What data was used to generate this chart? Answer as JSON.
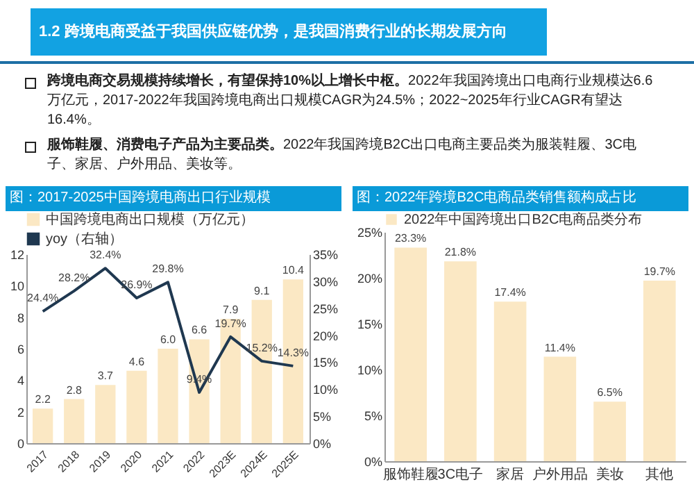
{
  "chart_data": [
    {
      "type": "other",
      "title": "1.2 跨境电商受益于我国供应链优势，是我国消费行业的长期发展方向",
      "annotations": [
        "跨境电商交易规模持续增长，有望保持10%以上增长中枢。2022年我国跨境出口电商行业规模达6.6万亿元，2017-2022年我国跨境电商出口规模CAGR为24.5%；2022~2025年行业CAGR有望达16.4%。",
        "服饰鞋履、消费电子产品为主要品类。2022年我国跨境B2C出口电商主要品类为服装鞋履、3C电子、家居、户外用品、美妆等。"
      ]
    },
    {
      "type": "bar",
      "title": "图：2017-2025中国跨境电商出口行业规模",
      "categories": [
        "2017",
        "2018",
        "2019",
        "2020",
        "2021",
        "2022",
        "2023E",
        "2024E",
        "2025E"
      ],
      "series": [
        {
          "name": "中国跨境电商出口规模（万亿元）",
          "type": "bar",
          "color": "#fbe8c4",
          "values": [
            2.2,
            2.8,
            3.7,
            4.6,
            6.0,
            6.6,
            7.9,
            9.1,
            10.4
          ],
          "value_labels": [
            "2.2",
            "2.8",
            "3.7",
            "4.6",
            "6.0",
            "6.6",
            "7.9",
            "9.1",
            "10.4"
          ]
        },
        {
          "name": "yoy（右轴）",
          "type": "line",
          "axis": "y2",
          "color": "#1f3850",
          "values": [
            24.4,
            28.2,
            32.4,
            26.9,
            29.8,
            9.4,
            19.7,
            15.2,
            14.3
          ],
          "value_labels": [
            "24.4%",
            "28.2%",
            "32.4%",
            "26.9%",
            "29.8%",
            "9.4%",
            "19.7%",
            "15.2%",
            "14.3%"
          ]
        }
      ],
      "ylim": [
        0,
        12
      ],
      "yticks": [
        0,
        2,
        4,
        6,
        8,
        10,
        12
      ],
      "y2lim": [
        0,
        35
      ],
      "y2ticks": [
        {
          "value": 0,
          "label": "0%"
        },
        {
          "value": 5,
          "label": "5%"
        },
        {
          "value": 10,
          "label": "10%"
        },
        {
          "value": 15,
          "label": "15%"
        },
        {
          "value": 20,
          "label": "20%"
        },
        {
          "value": 25,
          "label": "25%"
        },
        {
          "value": 30,
          "label": "30%"
        },
        {
          "value": 35,
          "label": "35%"
        }
      ],
      "legend": "top",
      "marker": "none",
      "line_style": "solid"
    },
    {
      "type": "bar",
      "title": "图：2022年跨境B2C电商品类销售额构成占比",
      "categories": [
        "服饰鞋履",
        "3C电子",
        "家居",
        "户外用品",
        "美妆",
        "其他"
      ],
      "series": [
        {
          "name": "2022年中国跨境出口B2C电商品类分布",
          "color": "#fbe8c4",
          "values": [
            23.3,
            21.8,
            17.4,
            11.4,
            6.5,
            19.7
          ],
          "value_labels": [
            "23.3%",
            "21.8%",
            "17.4%",
            "11.4%",
            "6.5%",
            "19.7%"
          ]
        }
      ],
      "ylim": [
        0,
        25
      ],
      "yticks": [
        {
          "value": 0,
          "label": "0%"
        },
        {
          "value": 5,
          "label": "5%"
        },
        {
          "value": 10,
          "label": "10%"
        },
        {
          "value": 15,
          "label": "15%"
        },
        {
          "value": 20,
          "label": "20%"
        },
        {
          "value": 25,
          "label": "25%"
        }
      ],
      "legend": "top"
    }
  ]
}
